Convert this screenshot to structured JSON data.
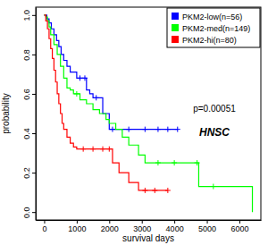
{
  "chart_data": {
    "type": "line",
    "x_label": "survival days",
    "y_label": "probability",
    "xlim": [
      -260,
      6660
    ],
    "ylim": [
      -0.04,
      1.04
    ],
    "xticks": [
      0,
      1000,
      2000,
      3000,
      4000,
      5000,
      6000
    ],
    "yticks": [
      {
        "value": 0,
        "label": "0.0"
      },
      {
        "value": 0.2,
        "label": "0.2"
      },
      {
        "value": 0.4,
        "label": "0.4"
      },
      {
        "value": 0.6,
        "label": "0.6"
      },
      {
        "value": 0.8,
        "label": "0.8"
      },
      {
        "value": 1,
        "label": "1.0"
      }
    ],
    "legend": "topright",
    "line_style": "step",
    "marker": "plus",
    "annotations": [
      {
        "text": "p=0.00051"
      },
      {
        "text": "HNSC"
      }
    ],
    "series": [
      {
        "name": "PKM2-low(n=56)",
        "color": "#0000ff",
        "x": [
          0,
          80,
          150,
          220,
          300,
          380,
          450,
          520,
          600,
          700,
          800,
          1000,
          1100,
          1250,
          1300,
          1400,
          1500,
          1600,
          1800,
          2000,
          2100,
          2600,
          3100,
          3500,
          3800,
          4100
        ],
        "values": [
          1.0,
          0.98,
          0.96,
          0.93,
          0.9,
          0.87,
          0.84,
          0.8,
          0.77,
          0.74,
          0.71,
          0.68,
          0.68,
          0.68,
          0.62,
          0.6,
          0.58,
          0.58,
          0.5,
          0.42,
          0.42,
          0.42,
          0.42,
          0.42,
          0.42,
          0.42
        ],
        "censored": [
          false,
          false,
          false,
          false,
          false,
          false,
          false,
          false,
          false,
          false,
          false,
          false,
          true,
          true,
          false,
          false,
          false,
          true,
          false,
          false,
          true,
          true,
          true,
          true,
          true,
          true
        ]
      },
      {
        "name": "PKM2-med(n=149)",
        "color": "#00ff00",
        "x": [
          0,
          50,
          100,
          150,
          200,
          300,
          400,
          500,
          600,
          700,
          800,
          900,
          1000,
          1100,
          1300,
          1500,
          1700,
          1900,
          2000,
          2200,
          2400,
          2600,
          2900,
          3100,
          3500,
          4000,
          4700,
          4750,
          5200,
          6400
        ],
        "values": [
          1.0,
          0.99,
          0.97,
          0.94,
          0.9,
          0.85,
          0.8,
          0.74,
          0.68,
          0.63,
          0.62,
          0.6,
          0.6,
          0.57,
          0.55,
          0.52,
          0.5,
          0.47,
          0.45,
          0.42,
          0.38,
          0.34,
          0.29,
          0.25,
          0.25,
          0.25,
          0.25,
          0.13,
          0.13,
          0.0
        ],
        "censored": [
          false,
          false,
          false,
          false,
          false,
          false,
          false,
          false,
          false,
          false,
          false,
          false,
          true,
          false,
          false,
          false,
          false,
          false,
          false,
          false,
          false,
          false,
          false,
          false,
          true,
          true,
          true,
          false,
          true,
          false
        ]
      },
      {
        "name": "PKM2-hi(n=80)",
        "color": "#ff0000",
        "x": [
          0,
          50,
          100,
          150,
          200,
          250,
          300,
          350,
          400,
          450,
          500,
          550,
          600,
          700,
          800,
          900,
          1000,
          1200,
          1500,
          1800,
          2000,
          2100,
          2300,
          2600,
          2900,
          3100,
          3400,
          3800
        ],
        "values": [
          1.0,
          0.97,
          0.93,
          0.88,
          0.83,
          0.78,
          0.72,
          0.66,
          0.6,
          0.55,
          0.5,
          0.45,
          0.42,
          0.38,
          0.35,
          0.33,
          0.32,
          0.32,
          0.32,
          0.32,
          0.32,
          0.25,
          0.2,
          0.15,
          0.11,
          0.11,
          0.11,
          0.11
        ],
        "censored": [
          false,
          false,
          false,
          false,
          false,
          false,
          false,
          false,
          false,
          false,
          false,
          false,
          false,
          false,
          false,
          false,
          false,
          true,
          true,
          true,
          true,
          false,
          false,
          false,
          false,
          true,
          true,
          true
        ]
      }
    ]
  }
}
